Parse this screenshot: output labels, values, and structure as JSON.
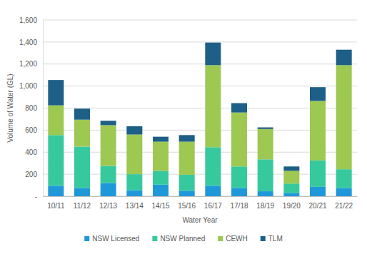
{
  "chart_data": {
    "type": "bar",
    "stacked": true,
    "grid": true,
    "legend": "bottom",
    "x_label": "Water Year",
    "y_label": "Volume of Water (GL)",
    "categories": [
      "10/11",
      "11/12",
      "12/13",
      "13/14",
      "14/15",
      "15/16",
      "16/17",
      "17/18",
      "18/19",
      "19/20",
      "20/21",
      "21/22"
    ],
    "series": [
      {
        "name": "NSW Licensed",
        "color": "#1f98d9",
        "values": [
          95,
          75,
          120,
          55,
          105,
          50,
          95,
          75,
          45,
          30,
          85,
          75
        ]
      },
      {
        "name": "NSW Planned",
        "color": "#36c99e",
        "values": [
          460,
          375,
          155,
          145,
          125,
          145,
          350,
          195,
          290,
          85,
          240,
          170
        ]
      },
      {
        "name": "CEWH",
        "color": "#9dc851",
        "values": [
          270,
          245,
          370,
          360,
          265,
          300,
          745,
          490,
          275,
          115,
          540,
          945
        ]
      },
      {
        "name": "TLM",
        "color": "#1d5f86",
        "values": [
          230,
          100,
          40,
          75,
          45,
          60,
          205,
          85,
          15,
          40,
          125,
          140
        ]
      }
    ],
    "ylim": [
      0,
      1600
    ],
    "yticks": [
      {
        "value": 0,
        "label": "-"
      },
      200,
      400,
      600,
      800,
      {
        "value": 1000,
        "label": "1,000"
      },
      {
        "value": 1200,
        "label": "1,200"
      },
      {
        "value": 1400,
        "label": "1,400"
      },
      {
        "value": 1600,
        "label": "1,600"
      }
    ]
  }
}
